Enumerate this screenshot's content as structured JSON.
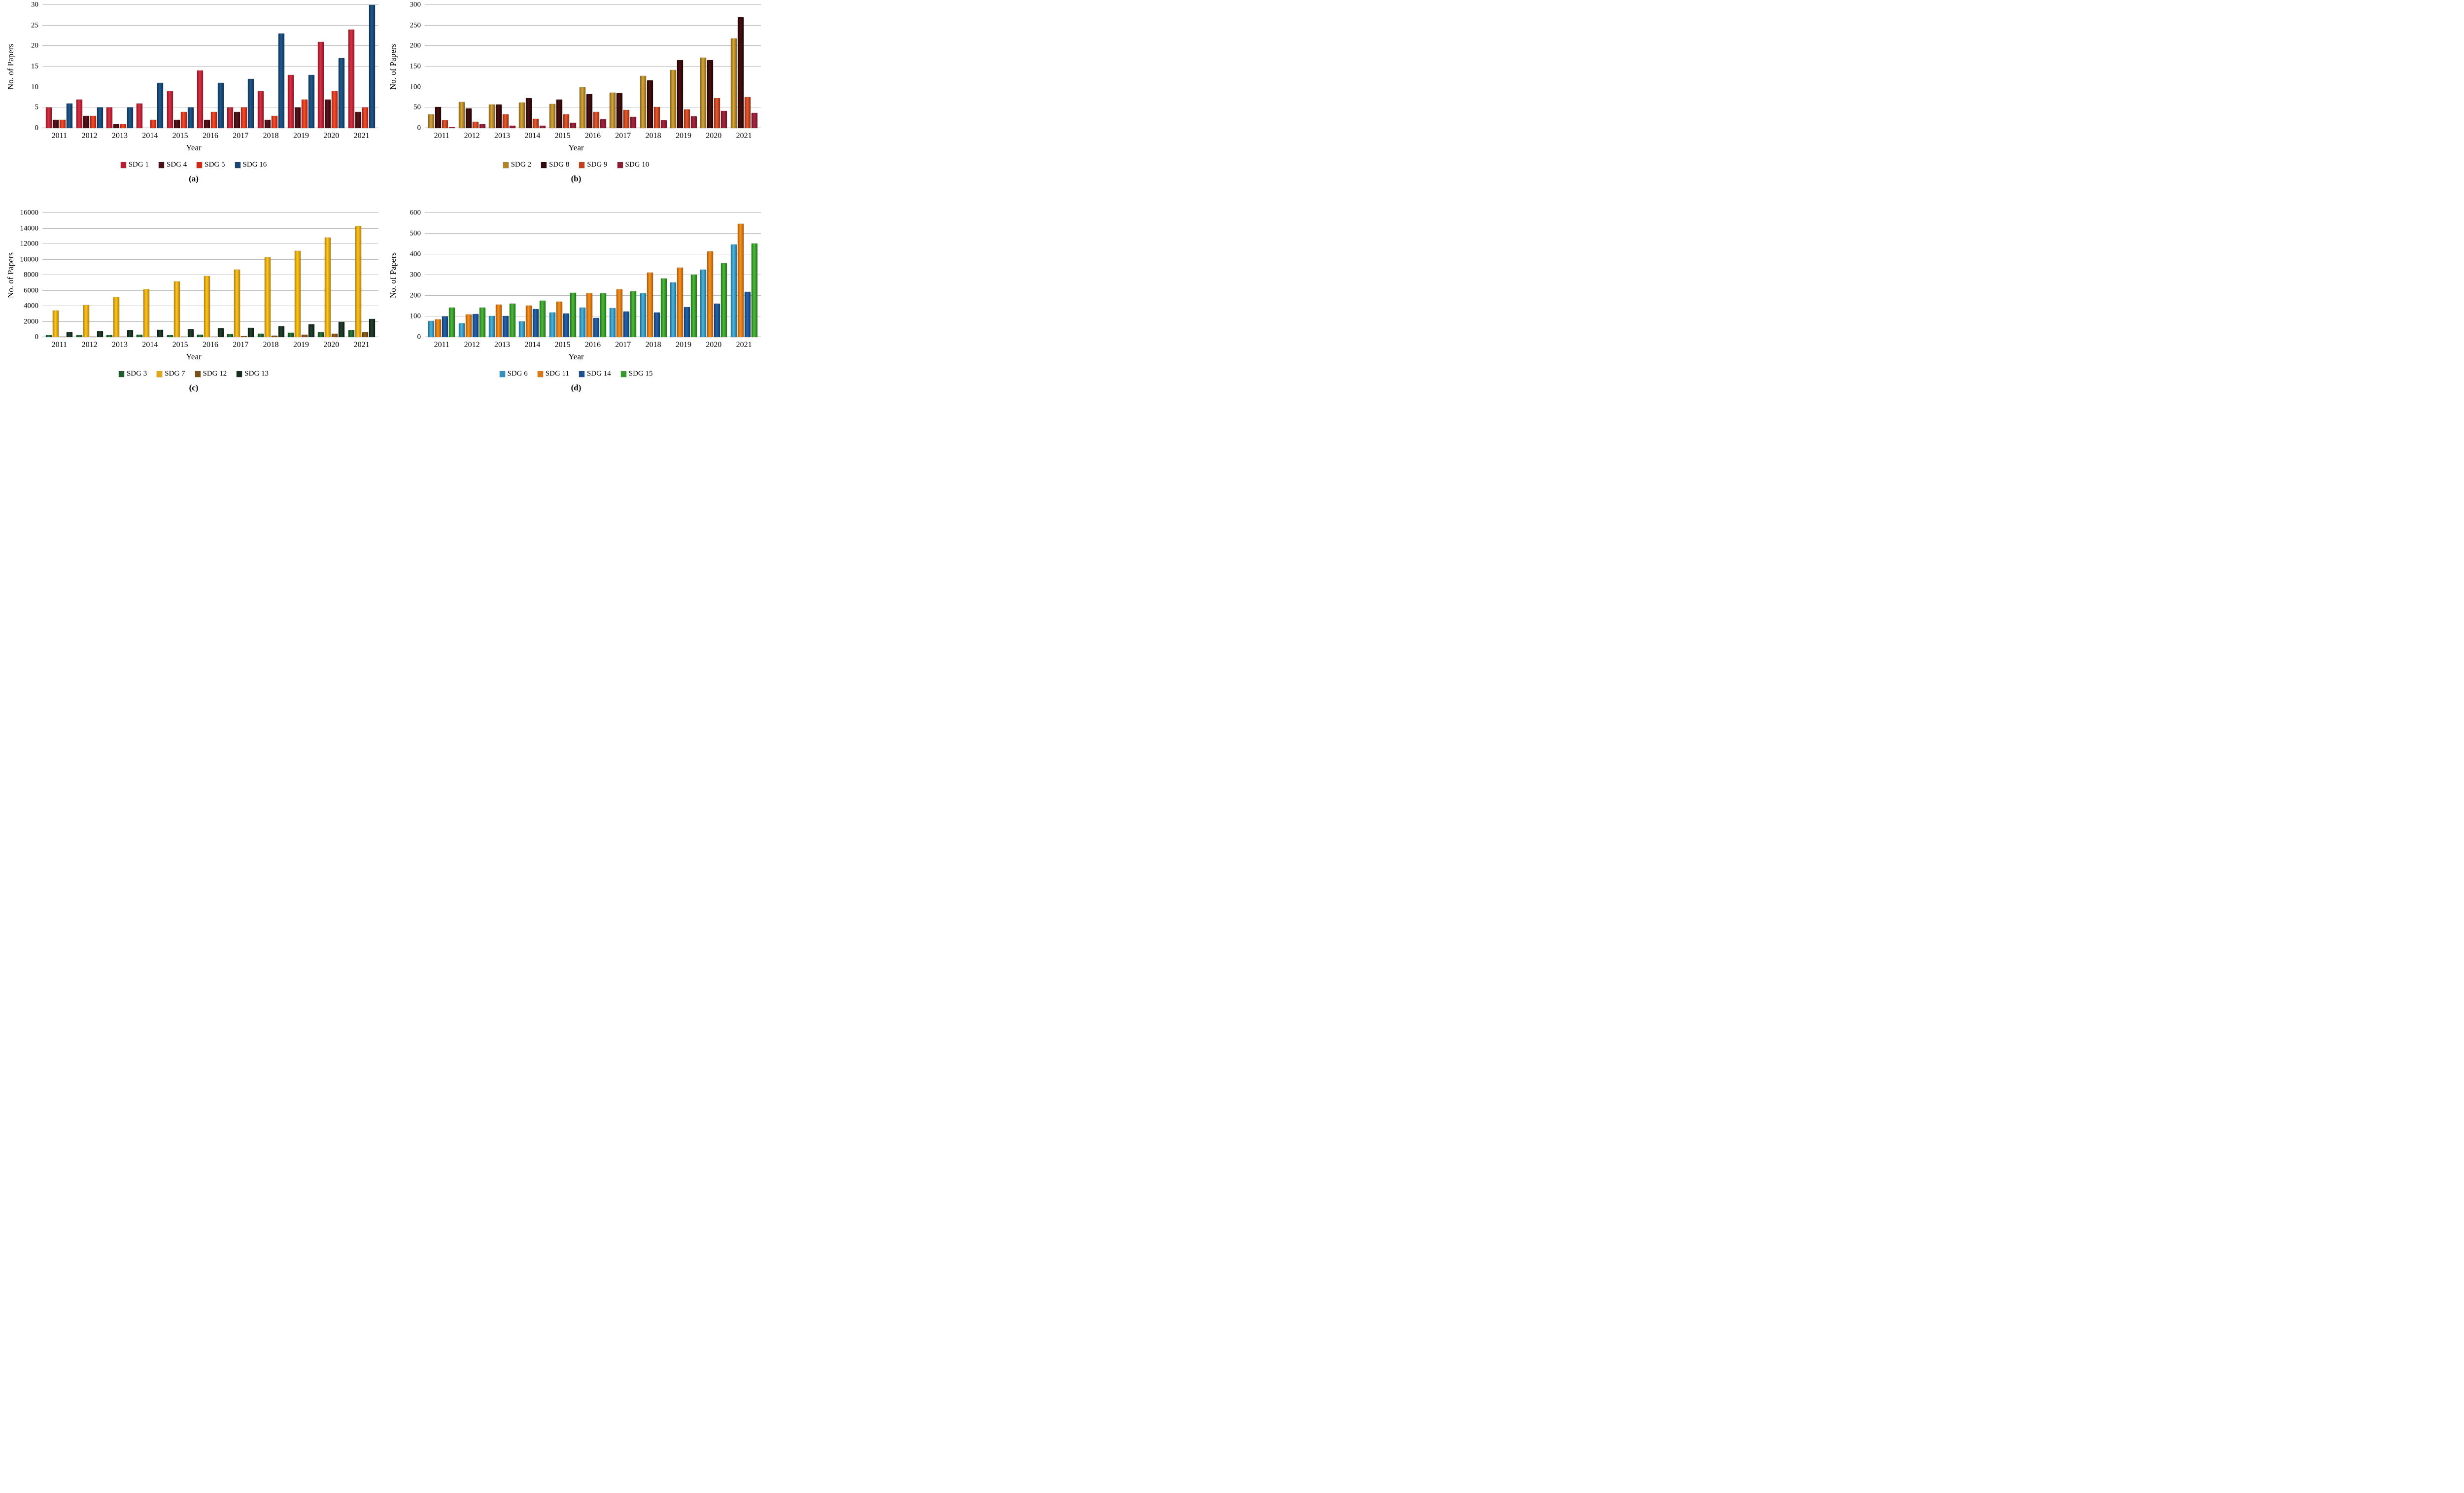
{
  "chart_data": [
    {
      "type": "bar",
      "caption": "(a)",
      "ylabel": "No. of Papers",
      "xlabel": "Year",
      "ylim": [
        0,
        30
      ],
      "ystep": 5,
      "grid": "horizontal",
      "legend_position": "bottom",
      "categories": [
        "2011",
        "2012",
        "2013",
        "2014",
        "2015",
        "2016",
        "2017",
        "2018",
        "2019",
        "2020",
        "2021"
      ],
      "series": [
        {
          "name": "SDG 1",
          "color": "#B32031",
          "color_dark": "#971222",
          "color_light": "#D63445",
          "values": [
            5,
            7,
            5,
            6,
            9,
            14,
            5,
            9,
            13,
            21,
            24
          ]
        },
        {
          "name": "SDG 4",
          "color": "#461016",
          "color_dark": "#2E070B",
          "color_light": "#5A151D",
          "values": [
            2,
            3,
            1,
            0,
            2,
            2,
            4,
            2,
            5,
            7,
            4
          ]
        },
        {
          "name": "SDG 5",
          "color": "#CE2A14",
          "color_dark": "#B01C0E",
          "color_light": "#F5512E",
          "values": [
            2,
            3,
            1,
            2,
            4,
            4,
            5,
            3,
            7,
            9,
            5
          ]
        },
        {
          "name": "SDG 16",
          "color": "#17456F",
          "color_dark": "#0F3355",
          "color_light": "#1E5A8E",
          "values": [
            6,
            5,
            5,
            11,
            5,
            11,
            12,
            23,
            13,
            17,
            30
          ]
        }
      ]
    },
    {
      "type": "bar",
      "caption": "(b)",
      "ylabel": "No. of Papers",
      "xlabel": "Year",
      "ylim": [
        0,
        300
      ],
      "ystep": 50,
      "grid": "horizontal",
      "legend_position": "bottom",
      "categories": [
        "2011",
        "2012",
        "2013",
        "2014",
        "2015",
        "2016",
        "2017",
        "2018",
        "2019",
        "2020",
        "2021"
      ],
      "series": [
        {
          "name": "SDG 2",
          "color": "#B08428",
          "color_dark": "#8A650F",
          "color_light": "#D5A440",
          "values": [
            34,
            64,
            57,
            62,
            59,
            100,
            86,
            127,
            141,
            172,
            218
          ]
        },
        {
          "name": "SDG 8",
          "color": "#330A0B",
          "color_dark": "#200505",
          "color_light": "#4A0F12",
          "values": [
            52,
            48,
            57,
            73,
            69,
            83,
            85,
            116,
            166,
            166,
            270
          ]
        },
        {
          "name": "SDG 9",
          "color": "#C4401C",
          "color_dark": "#992910",
          "color_light": "#E85C2E",
          "values": [
            19,
            15,
            34,
            23,
            33,
            39,
            44,
            52,
            45,
            73,
            76
          ]
        },
        {
          "name": "SDG 10",
          "color": "#8C1D33",
          "color_dark": "#701325",
          "color_light": "#A82742",
          "values": [
            2,
            10,
            6,
            6,
            13,
            22,
            28,
            19,
            29,
            42,
            37
          ]
        }
      ]
    },
    {
      "type": "bar",
      "caption": "(c)",
      "ylabel": "No. of Papers",
      "xlabel": "Year",
      "ylim": [
        0,
        16000
      ],
      "ystep": 2000,
      "grid": "horizontal",
      "legend_position": "bottom",
      "categories": [
        "2011",
        "2012",
        "2013",
        "2014",
        "2015",
        "2016",
        "2017",
        "2018",
        "2019",
        "2020",
        "2021"
      ],
      "series": [
        {
          "name": "SDG 3",
          "color": "#1E5C2C",
          "color_dark": "#0F3D1A",
          "color_light": "#2E7D3E",
          "values": [
            250,
            280,
            280,
            330,
            270,
            340,
            390,
            430,
            560,
            650,
            860
          ]
        },
        {
          "name": "SDG 7",
          "color": "#E3A511",
          "color_dark": "#B5820A",
          "color_light": "#FFC61A",
          "values": [
            3400,
            4100,
            5150,
            6150,
            7200,
            7900,
            8700,
            10300,
            11100,
            12850,
            14300
          ]
        },
        {
          "name": "SDG 12",
          "color": "#7B4E14",
          "color_dark": "#5E380C",
          "color_light": "#9A641E",
          "values": [
            40,
            50,
            60,
            70,
            80,
            90,
            110,
            160,
            300,
            420,
            620
          ]
        },
        {
          "name": "SDG 13",
          "color": "#17301F",
          "color_dark": "#0B1B11",
          "color_light": "#254430",
          "values": [
            650,
            780,
            880,
            950,
            1030,
            1150,
            1200,
            1400,
            1640,
            1950,
            2330
          ]
        }
      ]
    },
    {
      "type": "bar",
      "caption": "(d)",
      "ylabel": "No. of Papers",
      "xlabel": "Year",
      "ylim": [
        0,
        600
      ],
      "ystep": 100,
      "grid": "horizontal",
      "legend_position": "bottom",
      "categories": [
        "2011",
        "2012",
        "2013",
        "2014",
        "2015",
        "2016",
        "2017",
        "2018",
        "2019",
        "2020",
        "2021"
      ],
      "series": [
        {
          "name": "SDG 6",
          "color": "#2E92BA",
          "color_dark": "#1B6E92",
          "color_light": "#4FB6DC",
          "values": [
            78,
            67,
            103,
            75,
            118,
            144,
            140,
            211,
            264,
            325,
            448
          ]
        },
        {
          "name": "SDG 11",
          "color": "#DD7711",
          "color_dark": "#AF5A06",
          "color_light": "#F79420",
          "values": [
            85,
            110,
            157,
            153,
            172,
            213,
            230,
            312,
            336,
            415,
            548
          ]
        },
        {
          "name": "SDG 14",
          "color": "#1C4F8E",
          "color_dark": "#123A70",
          "color_light": "#2565AE",
          "values": [
            100,
            112,
            103,
            135,
            115,
            94,
            123,
            119,
            145,
            163,
            220
          ]
        },
        {
          "name": "SDG 15",
          "color": "#339A2B",
          "color_dark": "#1E7713",
          "color_light": "#4FBA3F",
          "values": [
            142,
            144,
            162,
            176,
            214,
            212,
            222,
            283,
            302,
            358,
            452
          ]
        }
      ]
    }
  ]
}
